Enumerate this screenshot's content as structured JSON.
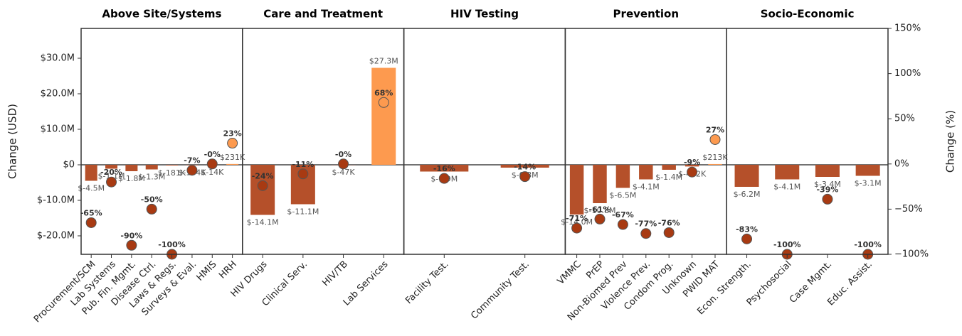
{
  "chart_data": {
    "type": "bar",
    "ylabel": "Change (USD)",
    "y2label": "Change (%)",
    "ylim": [
      -25200000,
      38400000
    ],
    "yticks": [
      {
        "value": -20000000,
        "label": "$-20.0M"
      },
      {
        "value": -10000000,
        "label": "$-10.0M"
      },
      {
        "value": 0,
        "label": "$0"
      },
      {
        "value": 10000000,
        "label": "$10.0M"
      },
      {
        "value": 20000000,
        "label": "$20.0M"
      },
      {
        "value": 30000000,
        "label": "$30.0M"
      }
    ],
    "y2lim": [
      -100,
      150
    ],
    "y2ticks": [
      {
        "value": -100,
        "label": "−100%"
      },
      {
        "value": -50,
        "label": "−50%"
      },
      {
        "value": 0,
        "label": "0%"
      },
      {
        "value": 50,
        "label": "50%"
      },
      {
        "value": 100,
        "label": "100%"
      },
      {
        "value": 150,
        "label": "150%"
      }
    ],
    "neg_color": "#b5502a",
    "pos_color": "#fd9a4f",
    "neg_dot_color": "#a83a12",
    "pos_dot_color": "#fd9a4f",
    "panels": [
      {
        "title": "Above Site/Systems",
        "categories": [
          "Procurement/SCM",
          "Lab Systems",
          "Pub. Fin. Mgmt.",
          "Disease Ctrl.",
          "Laws & Regs.",
          "Surveys & Eval.",
          "HMIS",
          "HRH"
        ],
        "values": [
          -4500000,
          -1100000,
          -1800000,
          -1300000,
          -181000,
          -134000,
          -14000,
          231000
        ],
        "value_labels": [
          "$-4.5M",
          "$-1.1M",
          "$-1.8M",
          "$-1.3M",
          "$-181K",
          "$-134K",
          "$-14K",
          "$231K"
        ],
        "pct": [
          -65,
          -20,
          -90,
          -50,
          -100,
          -7,
          0,
          23
        ],
        "pct_labels": [
          "-65%",
          "-20%",
          "-90%",
          "-50%",
          "-100%",
          "-7%",
          "-0%",
          "23%"
        ]
      },
      {
        "title": "Care and Treatment",
        "categories": [
          "HIV Drugs",
          "Clinical Serv.",
          "HIV/TB",
          "Lab Services"
        ],
        "values": [
          -14100000,
          -11100000,
          -47000,
          27300000
        ],
        "value_labels": [
          "$-14.1M",
          "$-11.1M",
          "$-47K",
          "$27.3M"
        ],
        "pct": [
          -24,
          -11,
          0,
          68
        ],
        "pct_labels": [
          "-24%",
          "-11%",
          "-0%",
          "68%"
        ]
      },
      {
        "title": "HIV Testing",
        "categories": [
          "Facility Test.",
          "Community Test."
        ],
        "values": [
          -1900000,
          -800000
        ],
        "value_labels": [
          "$-1.9M",
          "$-0.8M"
        ],
        "pct": [
          -16,
          -14
        ],
        "pct_labels": [
          "-16%",
          "-14%"
        ]
      },
      {
        "title": "Prevention",
        "categories": [
          "VMMC",
          "PrEP",
          "Non-Biomed Prev",
          "Violence Prev.",
          "Condom Prog.",
          "Unknown",
          "PWID MAT"
        ],
        "values": [
          -14000000,
          -10800000,
          -6500000,
          -4100000,
          -1400000,
          -472000,
          213000
        ],
        "value_labels": [
          "$-14.0M",
          "$-10.8M",
          "$-6.5M",
          "$-4.1M",
          "$-1.4M",
          "$-472K",
          "$213K"
        ],
        "pct": [
          -71,
          -61,
          -67,
          -77,
          -76,
          -9,
          27
        ],
        "pct_labels": [
          "-71%",
          "-61%",
          "-67%",
          "-77%",
          "-76%",
          "-9%",
          "27%"
        ]
      },
      {
        "title": "Socio-Economic",
        "categories": [
          "Econ. Strength.",
          "Psychosocial",
          "Case Mgmt.",
          "Educ. Assist."
        ],
        "values": [
          -6200000,
          -4100000,
          -3400000,
          -3100000
        ],
        "value_labels": [
          "$-6.2M",
          "$-4.1M",
          "$-3.4M",
          "$-3.1M"
        ],
        "pct": [
          -83,
          -100,
          -39,
          -100
        ],
        "pct_labels": [
          "-83%",
          "-100%",
          "-39%",
          "-100%"
        ]
      }
    ]
  }
}
